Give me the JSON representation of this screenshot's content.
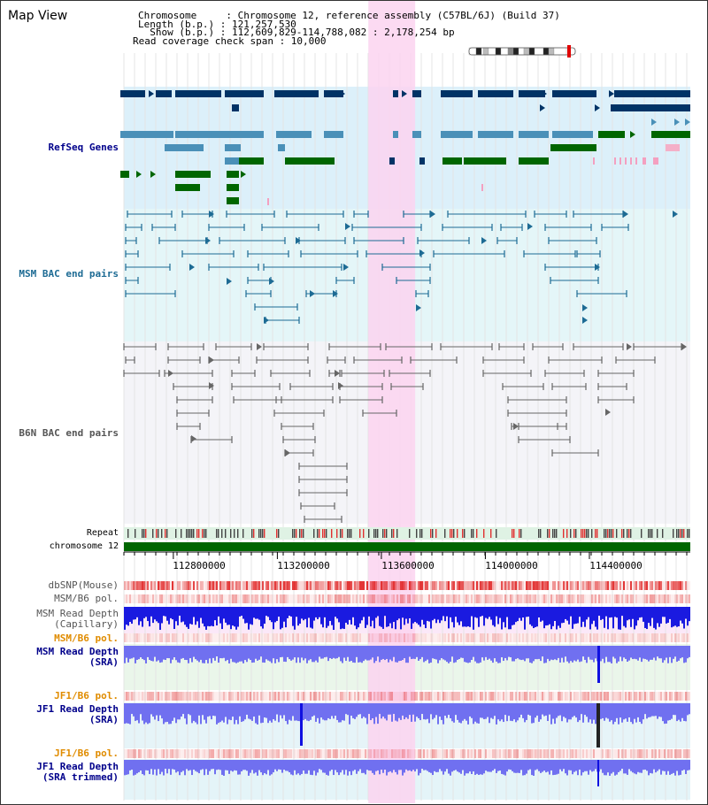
{
  "page_title": "Map View",
  "info": {
    "lines": [
      "Chromosome     : Chromosome 12, reference assembly (C57BL/6J) (Build 37)",
      "Length (b.p.) : 121,257,530",
      "  Show (b.p.) : 112,609,829-114,788,082 : 2,178,254 bp",
      "Read coverage check span : 10,000"
    ]
  },
  "tracks": {
    "refseq": "RefSeq Genes",
    "msm_bac": "MSM BAC end pairs",
    "b6n_bac": "B6N BAC end pairs",
    "repeat": "Repeat",
    "chromosome": "chromosome 12",
    "dbsnp": "dbSNP(Mouse)",
    "msm_pol": "MSM/B6 pol.",
    "msm_depth_cap_1": "MSM Read Depth",
    "msm_depth_cap_2": "(Capillary)",
    "msm_pol_2": "MSM/B6 pol.",
    "msm_depth_sra_1": "MSM Read Depth",
    "msm_depth_sra_2": "(SRA)",
    "jf1_pol": "JF1/B6 pol.",
    "jf1_depth_1": "JF1 Read Depth",
    "jf1_depth_2": "(SRA)",
    "jf1_pol_2": "JF1/B6 pol.",
    "jf1_trim_1": "JF1 Read Depth",
    "jf1_trim_2": "(SRA trimmed)"
  },
  "axis": {
    "ticks": [
      "112800000",
      "113200000",
      "113600000",
      "114000000",
      "114400000"
    ],
    "tick_values": [
      112800000,
      113200000,
      113600000,
      114000000,
      114400000
    ],
    "start": 112609829,
    "end": 114788082,
    "highlight": [
      113550000,
      113730000
    ]
  },
  "colors": {
    "refseq_dark": "#003366",
    "refseq_light": "#4a90b8",
    "refseq_green": "#006600",
    "bac_msm": "#1d6b94",
    "bac_b6n": "#666666",
    "highlight": "#fbd3f0",
    "label_blue": "#00008b",
    "label_orange": "#e08c00"
  }
}
